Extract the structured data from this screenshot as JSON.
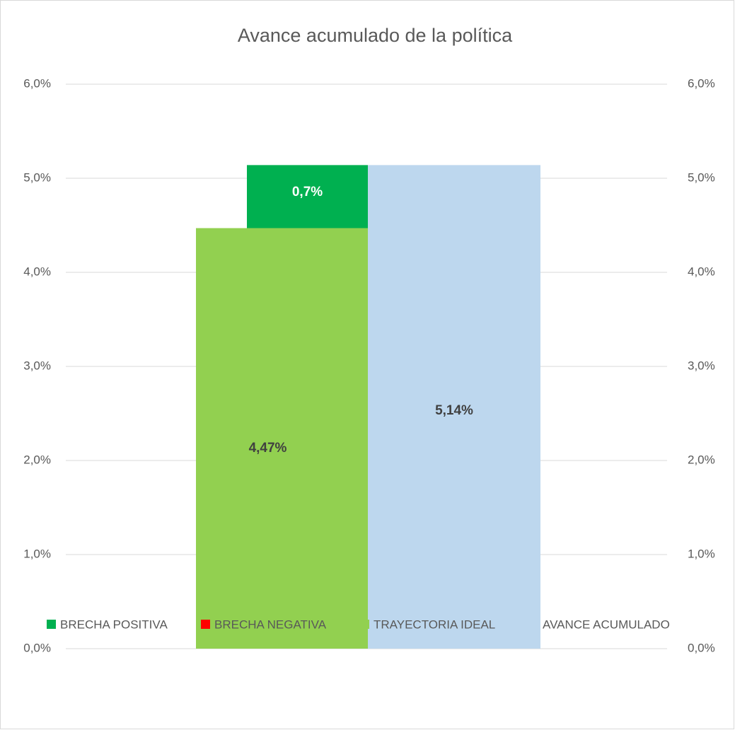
{
  "chart_data": {
    "type": "bar",
    "title": "Avance acumulado de la política",
    "series": [
      {
        "name": "BRECHA POSITIVA",
        "color": "#00b050",
        "values": [
          0.67
        ],
        "value_labels": [
          "0,7%"
        ]
      },
      {
        "name": "BRECHA NEGATIVA",
        "color": "#ff0000",
        "values": [
          null
        ]
      },
      {
        "name": "TRAYECTORIA IDEAL",
        "color": "#92d050",
        "values": [
          4.47
        ],
        "value_labels": [
          "4,47%"
        ]
      },
      {
        "name": "AVANCE ACUMULADO",
        "color": "#bdd7ee",
        "values": [
          5.14
        ],
        "value_labels": [
          "5,14%"
        ],
        "axis": "y2"
      }
    ],
    "ylim": [
      0,
      6
    ],
    "yticks": [
      {
        "value": 0,
        "label": "0,0%"
      },
      {
        "value": 1,
        "label": "1,0%"
      },
      {
        "value": 2,
        "label": "2,0%"
      },
      {
        "value": 3,
        "label": "3,0%"
      },
      {
        "value": 4,
        "label": "4,0%"
      },
      {
        "value": 5,
        "label": "5,0%"
      },
      {
        "value": 6,
        "label": "6,0%"
      }
    ],
    "y2lim": [
      0,
      6
    ],
    "y2ticks": [
      {
        "value": 0,
        "label": "0,0%"
      },
      {
        "value": 1,
        "label": "1,0%"
      },
      {
        "value": 2,
        "label": "2,0%"
      },
      {
        "value": 3,
        "label": "3,0%"
      },
      {
        "value": 4,
        "label": "4,0%"
      },
      {
        "value": 5,
        "label": "5,0%"
      },
      {
        "value": 6,
        "label": "6,0%"
      }
    ],
    "grid": true,
    "legend": "bottom"
  }
}
